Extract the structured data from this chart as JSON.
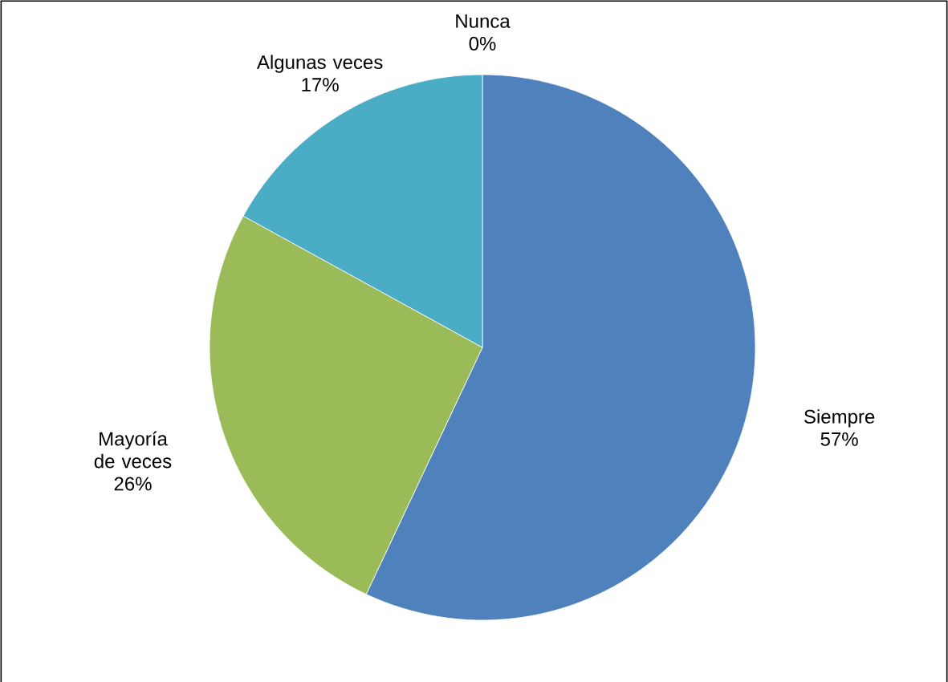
{
  "chart_data": {
    "type": "pie",
    "categories": [
      "Siempre",
      "Mayoría de veces",
      "Algunas veces",
      "Nunca"
    ],
    "values": [
      57,
      26,
      17,
      0
    ],
    "colors": [
      "#4f81bd",
      "#9bbb59",
      "#4bacc6",
      "#f79646"
    ],
    "value_labels": [
      "57%",
      "26%",
      "17%",
      "0%"
    ]
  }
}
